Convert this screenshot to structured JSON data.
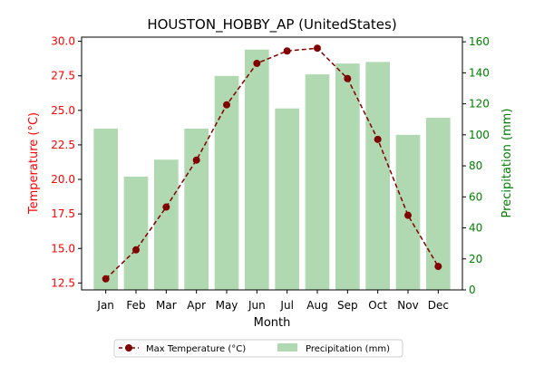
{
  "chart_data": {
    "type": "bar",
    "title": "HOUSTON_HOBBY_AP (UnitedStates)",
    "xlabel": "Month",
    "ylabel_left": "Temperature (°C)",
    "ylabel_right": "Precipitation (mm)",
    "categories": [
      "Jan",
      "Feb",
      "Mar",
      "Apr",
      "May",
      "Jun",
      "Jul",
      "Aug",
      "Sep",
      "Oct",
      "Nov",
      "Dec"
    ],
    "ylim_left": [
      12,
      30.3
    ],
    "ylim_right": [
      0,
      163
    ],
    "yticks_left": [
      "12.5",
      "15.0",
      "17.5",
      "20.0",
      "22.5",
      "25.0",
      "27.5",
      "30.0"
    ],
    "yticks_right": [
      "0",
      "20",
      "40",
      "60",
      "80",
      "100",
      "120",
      "140",
      "160"
    ],
    "series": [
      {
        "name": "Precipitation (mm)",
        "type": "bar",
        "axis": "right",
        "color": "#b1d9b1",
        "values": [
          104,
          73,
          84,
          104,
          138,
          155,
          117,
          139,
          146,
          147,
          100,
          111
        ]
      },
      {
        "name": "Max Temperature (°C)",
        "type": "line",
        "axis": "left",
        "color": "#800000",
        "linestyle": "dashed",
        "marker": "circle",
        "values": [
          12.8,
          14.9,
          18.0,
          21.4,
          25.4,
          28.4,
          29.3,
          29.5,
          27.3,
          22.9,
          17.4,
          13.7
        ]
      }
    ],
    "legend": {
      "placement": "bottom-center",
      "entries": [
        "Max Temperature (°C)",
        "Precipitation (mm)"
      ]
    },
    "grid": false
  },
  "colors": {
    "temperature_axis": "#ff0000",
    "precipitation_axis": "#008000",
    "axis_frame": "#000000"
  }
}
